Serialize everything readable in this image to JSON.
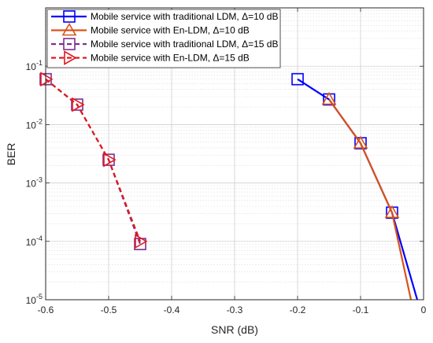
{
  "chart_data": {
    "type": "line",
    "xlabel": "SNR (dB)",
    "ylabel": "BER",
    "xlim": [
      -0.6,
      0
    ],
    "ylim": [
      1e-05,
      1
    ],
    "yscale": "log",
    "grid": true,
    "minor_grid": true,
    "legend_position": "top-left",
    "x_ticks": [
      {
        "value": -0.6,
        "label": "-0.6"
      },
      {
        "value": -0.5,
        "label": "-0.5"
      },
      {
        "value": -0.4,
        "label": "-0.4"
      },
      {
        "value": -0.3,
        "label": "-0.3"
      },
      {
        "value": -0.2,
        "label": "-0.2"
      },
      {
        "value": -0.1,
        "label": "-0.1"
      },
      {
        "value": 0,
        "label": "0"
      }
    ],
    "y_ticks": [
      {
        "value": 1e-05,
        "base": "10",
        "exp": "-5"
      },
      {
        "value": 0.0001,
        "base": "10",
        "exp": "-4"
      },
      {
        "value": 0.001,
        "base": "10",
        "exp": "-3"
      },
      {
        "value": 0.01,
        "base": "10",
        "exp": "-2"
      },
      {
        "value": 0.1,
        "base": "10",
        "exp": "-1"
      }
    ],
    "series": [
      {
        "name": "Mobile service with traditional LDM, Δ=10 dB",
        "color": "#0000FF",
        "marker": "square",
        "dashed": false,
        "x": [
          -0.2,
          -0.15,
          -0.1,
          -0.05,
          -0.01
        ],
        "y": [
          0.06,
          0.027,
          0.0048,
          0.00031,
          1e-05
        ]
      },
      {
        "name": "Mobile service with En-LDM, Δ=10 dB",
        "color": "#D95319",
        "marker": "triangle-up",
        "dashed": false,
        "x": [
          -0.15,
          -0.1,
          -0.05,
          -0.02
        ],
        "y": [
          0.027,
          0.0048,
          0.00031,
          1e-05
        ]
      },
      {
        "name": "Mobile service with traditional LDM, Δ=15 dB",
        "color": "#7E2F8E",
        "marker": "square",
        "dashed": true,
        "x": [
          -0.6,
          -0.55,
          -0.5,
          -0.45
        ],
        "y": [
          0.06,
          0.022,
          0.0025,
          9e-05
        ]
      },
      {
        "name": "Mobile service with En-LDM, Δ=15 dB",
        "color": "#E0181E",
        "marker": "triangle-right",
        "dashed": true,
        "x": [
          -0.6,
          -0.55,
          -0.5,
          -0.45
        ],
        "y": [
          0.06,
          0.022,
          0.0025,
          0.0001
        ]
      }
    ]
  }
}
